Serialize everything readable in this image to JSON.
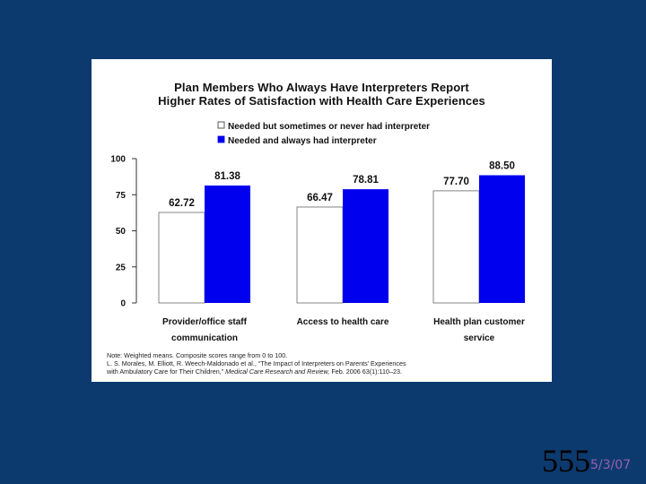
{
  "chart_data": {
    "type": "bar",
    "title_lines": [
      "Plan Members Who Always Have Interpreters Report",
      "Higher Rates of Satisfaction with Health Care Experiences"
    ],
    "categories": [
      [
        "Provider/office staff",
        "communication"
      ],
      [
        "Access to health care"
      ],
      [
        "Health plan customer",
        "service"
      ]
    ],
    "series": [
      {
        "name": "Needed but sometimes or never had interpreter",
        "values": [
          62.72,
          66.47,
          77.7
        ],
        "labels": [
          "62.72",
          "66.47",
          "77.70"
        ],
        "color": "#ffffff"
      },
      {
        "name": "Needed and always had interpreter",
        "values": [
          81.38,
          78.81,
          88.5
        ],
        "labels": [
          "81.38",
          "78.81",
          "88.50"
        ],
        "color": "#0000ee"
      }
    ],
    "yticks": [
      "0",
      "25",
      "50",
      "75",
      "100"
    ],
    "ylim": [
      0,
      100
    ],
    "legend_position": "top-right",
    "grid": false
  },
  "note": {
    "line1": "Note: Weighted means. Composite scores range from 0 to 100.",
    "line2": "L. S. Morales, M. Elliott, R. Weech-Maldonado et al., “The Impact of Interpreters on Parents’ Experiences",
    "line3_prefix": "with Ambulatory Care for Their Children,” ",
    "line3_journal": "Medical Care Research and Review,",
    "line3_suffix": " Feb. 2006 63(1):110–23."
  },
  "footer": {
    "slide_number": "555",
    "date": "5/3/07"
  },
  "colors": {
    "background": "#0d3a6e",
    "bar_blue": "#0000ee"
  }
}
